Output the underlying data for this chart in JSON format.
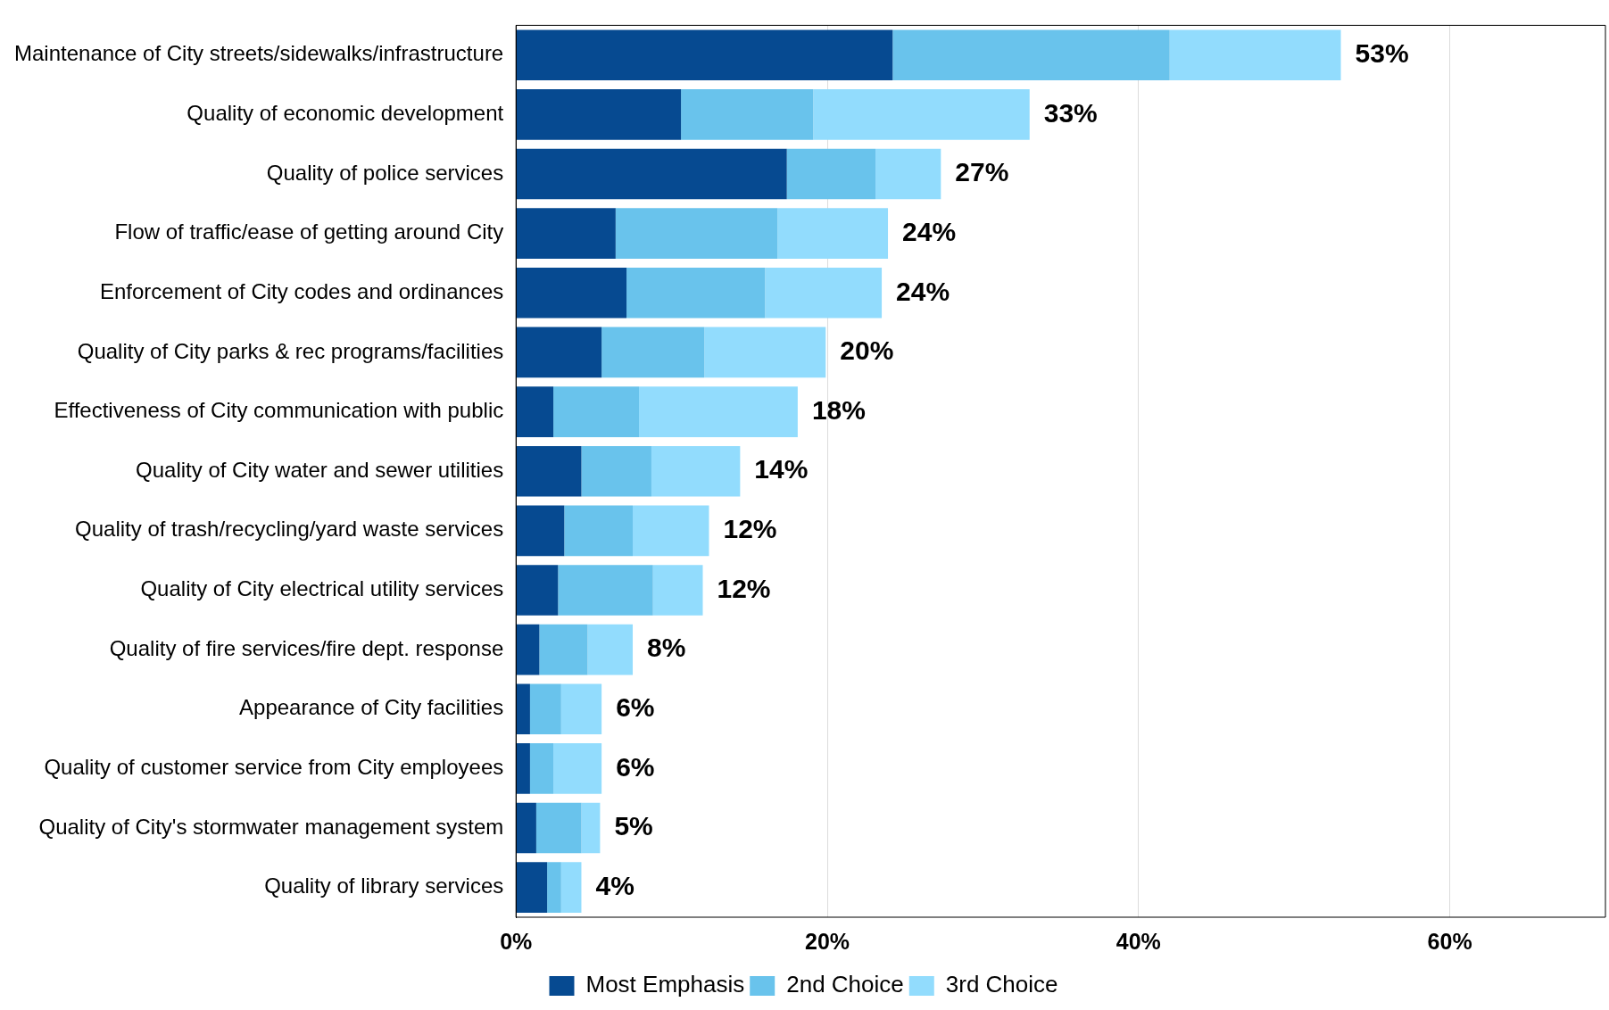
{
  "chart_data": {
    "type": "bar",
    "orientation": "horizontal",
    "stacked": true,
    "categories": [
      "Maintenance of City streets/sidewalks/infrastructure",
      "Quality of economic development",
      "Quality of police services",
      "Flow of traffic/ease of getting around City",
      "Enforcement of City codes and ordinances",
      "Quality of City parks & rec programs/facilities",
      "Effectiveness of City communication with public",
      "Quality of City water and sewer utilities",
      "Quality of trash/recycling/yard waste services",
      "Quality of City electrical utility services",
      "Quality of fire services/fire dept. response",
      "Appearance of City facilities",
      "Quality of customer service from City employees",
      "Quality of City's stormwater management system",
      "Quality of library services"
    ],
    "series": [
      {
        "name": "Most Emphasis",
        "color": "#064a91",
        "values": [
          24.2,
          10.6,
          17.4,
          6.4,
          7.1,
          5.5,
          2.4,
          4.2,
          3.1,
          2.7,
          1.5,
          0.9,
          0.9,
          1.3,
          2.0
        ]
      },
      {
        "name": "2nd Choice",
        "color": "#69c3ec",
        "values": [
          17.8,
          8.5,
          5.7,
          10.4,
          8.9,
          6.6,
          5.5,
          4.5,
          4.4,
          6.1,
          3.1,
          2.0,
          1.5,
          2.9,
          0.9
        ]
      },
      {
        "name": "3rd Choice",
        "color": "#92dcfd",
        "values": [
          11.0,
          13.9,
          4.2,
          7.1,
          7.5,
          7.8,
          10.2,
          5.7,
          4.9,
          3.2,
          2.9,
          2.6,
          3.1,
          1.2,
          1.3
        ]
      }
    ],
    "totals": [
      "53%",
      "33%",
      "27%",
      "24%",
      "24%",
      "20%",
      "18%",
      "14%",
      "12%",
      "12%",
      "8%",
      "6%",
      "6%",
      "5%",
      "4%"
    ],
    "xlim": [
      0,
      70
    ],
    "xticks": [
      {
        "value": 0,
        "label": "0%"
      },
      {
        "value": 20,
        "label": "20%"
      },
      {
        "value": 40,
        "label": "40%"
      },
      {
        "value": 60,
        "label": "60%"
      }
    ],
    "grid": "x",
    "legend": "bottom"
  }
}
